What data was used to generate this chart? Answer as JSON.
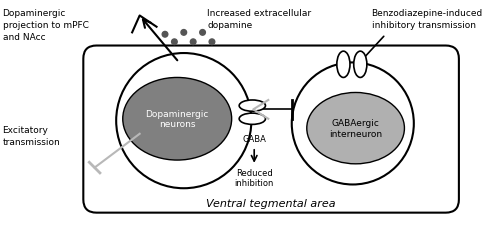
{
  "bg_color": "#ffffff",
  "white": "#ffffff",
  "light_gray": "#b0b0b0",
  "dark_gray": "#808080",
  "mid_gray": "#a0a0a0",
  "black": "#000000",
  "arrow_gray": "#b8b8b8",
  "labels": {
    "dopa_neuron": "Dopaminergic\nneurons",
    "gaba_interneuron": "GABAergic\ninterneuron",
    "vta": "Ventral tegmental area",
    "dopa_proj": "Dopaminergic\nprojection to mPFC\nand NAcc",
    "increased_da": "Increased extracellular\ndopamine",
    "benzo": "Benzodiazepine-induced\ninhibitory transmission",
    "excitatory": "Excitatory\ntransmission",
    "gaba_label": "GABA",
    "reduced_inh": "Reduced\ninhibition"
  },
  "figsize": [
    5.0,
    2.32
  ],
  "dpi": 100
}
